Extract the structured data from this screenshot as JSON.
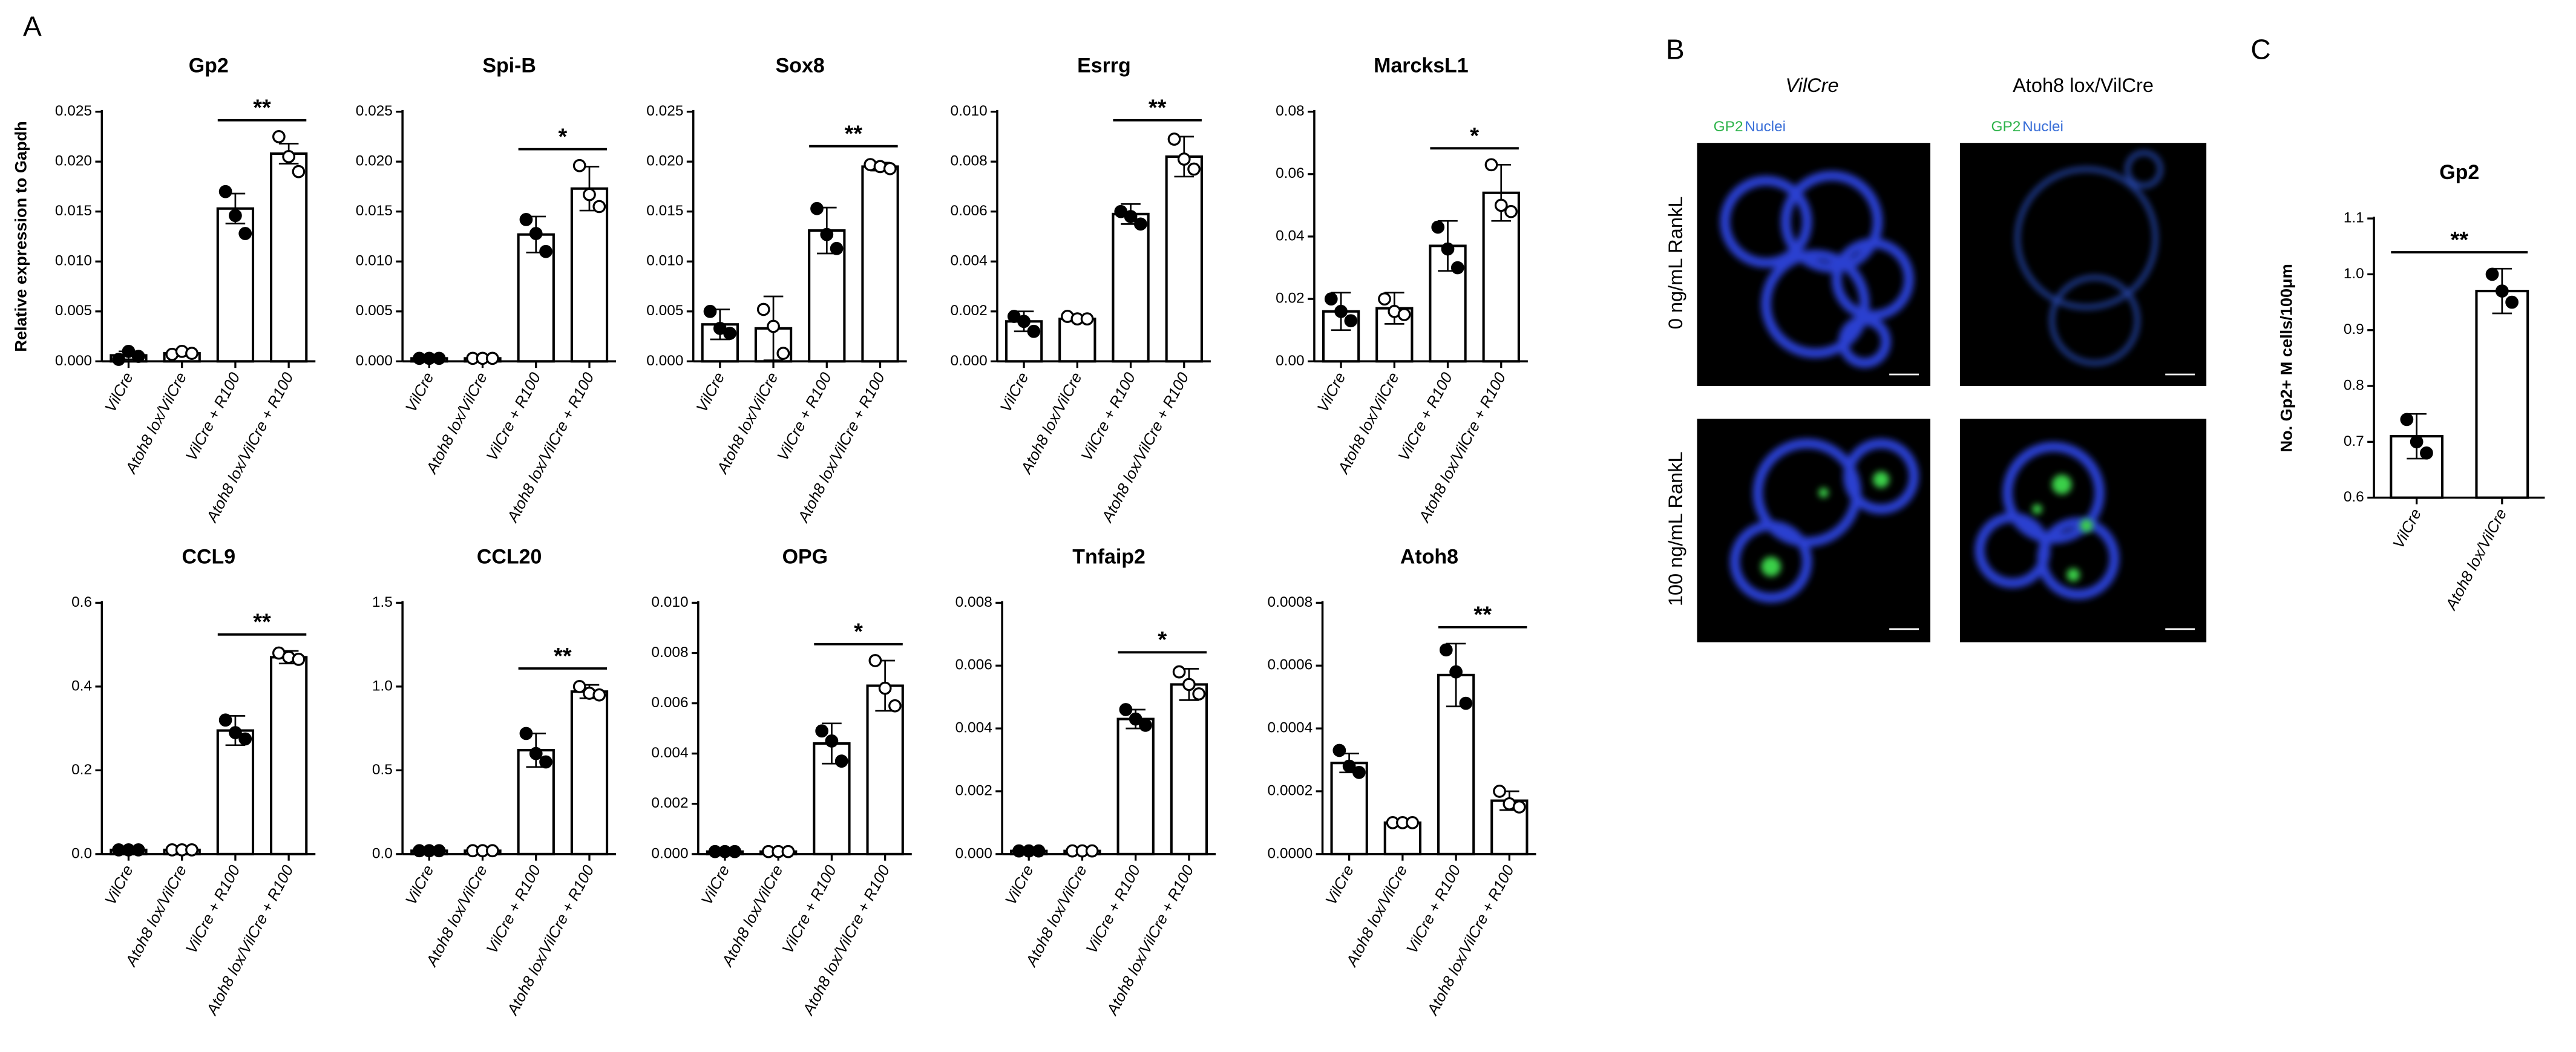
{
  "panel_labels": [
    "A",
    "B",
    "C"
  ],
  "chart_data": [
    {
      "type": "bar",
      "title": "Gp2",
      "ylabel": "Relative expression to Gapdh",
      "categories": [
        "VilCre",
        "Atoh8 lox/VilCre",
        "VilCre + R100",
        "Atoh8 lox/VilCre + R100"
      ],
      "values": [
        0.0006,
        0.0008,
        0.0153,
        0.0208
      ],
      "errors": [
        0.0004,
        0.0002,
        0.0015,
        0.001
      ],
      "points": [
        [
          0.0002,
          0.001,
          0.0005
        ],
        [
          0.0007,
          0.001,
          0.0008
        ],
        [
          0.017,
          0.0146,
          0.0128
        ],
        [
          0.0225,
          0.0205,
          0.019
        ]
      ],
      "point_colors": [
        "#000000",
        "#ffffff",
        "#000000",
        "#ffffff"
      ],
      "annotation": "**",
      "ylim": [
        0,
        0.025
      ],
      "yticks": [
        {
          "value": 0,
          "label": "0.000"
        },
        0.005,
        {
          "value": 0.01,
          "label": "0.010"
        },
        0.015,
        {
          "value": 0.02,
          "label": "0.020"
        },
        0.025
      ]
    },
    {
      "type": "bar",
      "title": "Spi-B",
      "categories": [
        "VilCre",
        "Atoh8 lox/VilCre",
        "VilCre + R100",
        "Atoh8 lox/VilCre + R100"
      ],
      "values": [
        0.0003,
        0.0003,
        0.0127,
        0.0173
      ],
      "errors": [
        0.0001,
        0.0001,
        0.0018,
        0.0022
      ],
      "points": [
        [
          0.0003,
          0.0003,
          0.0003
        ],
        [
          0.0003,
          0.0003,
          0.0003
        ],
        [
          0.0142,
          0.0128,
          0.011
        ],
        [
          0.0196,
          0.0167,
          0.0155
        ]
      ],
      "point_colors": [
        "#000000",
        "#ffffff",
        "#000000",
        "#ffffff"
      ],
      "annotation": "*",
      "ylim": [
        0,
        0.025
      ],
      "yticks": [
        {
          "value": 0,
          "label": "0.000"
        },
        0.005,
        {
          "value": 0.01,
          "label": "0.010"
        },
        0.015,
        {
          "value": 0.02,
          "label": "0.020"
        },
        0.025
      ]
    },
    {
      "type": "bar",
      "title": "Sox8",
      "categories": [
        "VilCre",
        "Atoh8 lox/VilCre",
        "VilCre + R100",
        "Atoh8 lox/VilCre + R100"
      ],
      "values": [
        0.0037,
        0.0033,
        0.0131,
        0.0195
      ],
      "errors": [
        0.0015,
        0.0032,
        0.0023,
        0.0004
      ],
      "points": [
        [
          0.005,
          0.0033,
          0.0028
        ],
        [
          0.0052,
          0.0035,
          0.0008
        ],
        [
          0.0153,
          0.0127,
          0.0113
        ],
        [
          0.0197,
          0.0195,
          0.0193
        ]
      ],
      "point_colors": [
        "#000000",
        "#ffffff",
        "#000000",
        "#ffffff"
      ],
      "annotation": "**",
      "ylim": [
        0,
        0.025
      ],
      "yticks": [
        {
          "value": 0,
          "label": "0.000"
        },
        0.005,
        {
          "value": 0.01,
          "label": "0.010"
        },
        0.015,
        {
          "value": 0.02,
          "label": "0.020"
        },
        0.025
      ]
    },
    {
      "type": "bar",
      "title": "Esrrg",
      "categories": [
        "VilCre",
        "Atoh8 lox/VilCre",
        "VilCre + R100",
        "Atoh8 lox/VilCre + R100"
      ],
      "values": [
        0.0016,
        0.0017,
        0.0059,
        0.0082
      ],
      "errors": [
        0.0004,
        0.0001,
        0.0004,
        0.0008
      ],
      "points": [
        [
          0.0018,
          0.0016,
          0.0012
        ],
        [
          0.0018,
          0.0017,
          0.0017
        ],
        [
          0.006,
          0.0058,
          0.0055
        ],
        [
          0.0089,
          0.0081,
          0.0077
        ]
      ],
      "point_colors": [
        "#000000",
        "#ffffff",
        "#000000",
        "#ffffff"
      ],
      "annotation": "**",
      "ylim": [
        0,
        0.01
      ],
      "yticks": [
        {
          "value": 0,
          "label": "0.000"
        },
        0.002,
        0.004,
        0.006,
        0.008,
        {
          "value": 0.01,
          "label": "0.010"
        }
      ]
    },
    {
      "type": "bar",
      "title": "MarcksL1",
      "categories": [
        "VilCre",
        "Atoh8 lox/VilCre",
        "VilCre + R100",
        "Atoh8 lox/VilCre + R100"
      ],
      "values": [
        0.016,
        0.017,
        0.037,
        0.054
      ],
      "errors": [
        0.006,
        0.005,
        0.008,
        0.009
      ],
      "points": [
        [
          0.02,
          0.016,
          0.013
        ],
        [
          0.02,
          0.016,
          0.015
        ],
        [
          0.043,
          0.036,
          0.03
        ],
        [
          0.063,
          0.05,
          0.048
        ]
      ],
      "point_colors": [
        "#000000",
        "#ffffff",
        "#000000",
        "#ffffff"
      ],
      "annotation": "*",
      "ylim": [
        0,
        0.08
      ],
      "yticks": [
        {
          "value": 0,
          "label": "0.00"
        },
        0.02,
        0.04,
        0.06,
        0.08
      ]
    },
    {
      "type": "bar",
      "title": "CCL9",
      "categories": [
        "VilCre",
        "Atoh8 lox/VilCre",
        "VilCre + R100",
        "Atoh8 lox/VilCre + R100"
      ],
      "values": [
        0.01,
        0.01,
        0.295,
        0.47
      ],
      "errors": [
        0.003,
        0.003,
        0.035,
        0.015
      ],
      "points": [
        [
          0.01,
          0.01,
          0.01
        ],
        [
          0.01,
          0.01,
          0.01
        ],
        [
          0.32,
          0.29,
          0.275
        ],
        [
          0.48,
          0.47,
          0.465
        ]
      ],
      "point_colors": [
        "#000000",
        "#ffffff",
        "#000000",
        "#ffffff"
      ],
      "annotation": "**",
      "ylim": [
        0,
        0.6
      ],
      "yticks": [
        {
          "value": 0,
          "label": "0.0"
        },
        0.2,
        0.4,
        0.6
      ]
    },
    {
      "type": "bar",
      "title": "CCL20",
      "categories": [
        "VilCre",
        "Atoh8 lox/VilCre",
        "VilCre + R100",
        "Atoh8 lox/VilCre + R100"
      ],
      "values": [
        0.02,
        0.02,
        0.62,
        0.97
      ],
      "errors": [
        0.01,
        0.01,
        0.1,
        0.04
      ],
      "points": [
        [
          0.02,
          0.02,
          0.02
        ],
        [
          0.02,
          0.02,
          0.02
        ],
        [
          0.72,
          0.6,
          0.55
        ],
        [
          1.0,
          0.96,
          0.95
        ]
      ],
      "point_colors": [
        "#000000",
        "#ffffff",
        "#000000",
        "#ffffff"
      ],
      "annotation": "**",
      "ylim": [
        0,
        1.5
      ],
      "yticks": [
        {
          "value": 0,
          "label": "0.0"
        },
        0.5,
        {
          "value": 1,
          "label": "1.0"
        },
        1.5
      ]
    },
    {
      "type": "bar",
      "title": "OPG",
      "categories": [
        "VilCre",
        "Atoh8 lox/VilCre",
        "VilCre + R100",
        "Atoh8 lox/VilCre + R100"
      ],
      "values": [
        0.0001,
        0.0001,
        0.0044,
        0.0067
      ],
      "errors": [
        5e-05,
        5e-05,
        0.0008,
        0.001
      ],
      "points": [
        [
          0.0001,
          0.0001,
          0.0001
        ],
        [
          0.0001,
          0.0001,
          0.0001
        ],
        [
          0.0049,
          0.0045,
          0.0037
        ],
        [
          0.0077,
          0.0066,
          0.0059
        ]
      ],
      "point_colors": [
        "#000000",
        "#ffffff",
        "#000000",
        "#ffffff"
      ],
      "annotation": "*",
      "ylim": [
        0,
        0.01
      ],
      "yticks": [
        {
          "value": 0,
          "label": "0.000"
        },
        0.002,
        0.004,
        0.006,
        0.008,
        {
          "value": 0.01,
          "label": "0.010"
        }
      ]
    },
    {
      "type": "bar",
      "title": "Tnfaip2",
      "categories": [
        "VilCre",
        "Atoh8 lox/VilCre",
        "VilCre + R100",
        "Atoh8 lox/VilCre + R100"
      ],
      "values": [
        0.0001,
        0.0001,
        0.0043,
        0.0054
      ],
      "errors": [
        5e-05,
        5e-05,
        0.0003,
        0.0005
      ],
      "points": [
        [
          0.0001,
          0.0001,
          0.0001
        ],
        [
          0.0001,
          0.0001,
          0.0001
        ],
        [
          0.0046,
          0.0043,
          0.0041
        ],
        [
          0.0058,
          0.0054,
          0.0051
        ]
      ],
      "point_colors": [
        "#000000",
        "#ffffff",
        "#000000",
        "#ffffff"
      ],
      "annotation": "*",
      "ylim": [
        0,
        0.008
      ],
      "yticks": [
        {
          "value": 0,
          "label": "0.000"
        },
        0.002,
        0.004,
        0.006,
        0.008
      ]
    },
    {
      "type": "bar",
      "title": "Atoh8",
      "categories": [
        "VilCre",
        "Atoh8 lox/VilCre",
        "VilCre + R100",
        "Atoh8 lox/VilCre + R100"
      ],
      "values": [
        0.00029,
        0.0001,
        0.00057,
        0.00017
      ],
      "errors": [
        3e-05,
        1e-05,
        0.0001,
        3e-05
      ],
      "points": [
        [
          0.00033,
          0.00028,
          0.00026
        ],
        [
          0.0001,
          0.0001,
          0.0001
        ],
        [
          0.00065,
          0.00058,
          0.00048
        ],
        [
          0.0002,
          0.00016,
          0.00015
        ]
      ],
      "point_colors": [
        "#000000",
        "#ffffff",
        "#000000",
        "#ffffff"
      ],
      "annotation": "**",
      "ylim": [
        0,
        0.0008
      ],
      "yticks": [
        {
          "value": 0,
          "label": "0.0000"
        },
        0.0002,
        0.0004,
        0.0006,
        0.0008
      ]
    },
    {
      "type": "bar",
      "title": "Gp2",
      "ylabel": "No. Gp2+ M cells/100μm",
      "categories": [
        "VilCre",
        "Atoh8 lox/VilCre"
      ],
      "values": [
        0.71,
        0.97
      ],
      "errors": [
        0.04,
        0.04
      ],
      "points": [
        [
          0.74,
          0.7,
          0.68
        ],
        [
          1.0,
          0.97,
          0.95
        ]
      ],
      "point_colors": [
        "#000000",
        "#000000"
      ],
      "annotation": "**",
      "ylim": [
        0.6,
        1.1
      ],
      "yticks": [
        0.6,
        0.7,
        0.8,
        0.9,
        {
          "value": 1,
          "label": "1.0"
        },
        1.1
      ]
    }
  ],
  "micrographs": {
    "columns": [
      "VilCre",
      "Atoh8 lox/VilCre"
    ],
    "stains": [
      "GP2",
      "Nuclei"
    ],
    "rows": [
      "0 ng/mL RankL",
      "100 ng/mL RankL"
    ]
  }
}
